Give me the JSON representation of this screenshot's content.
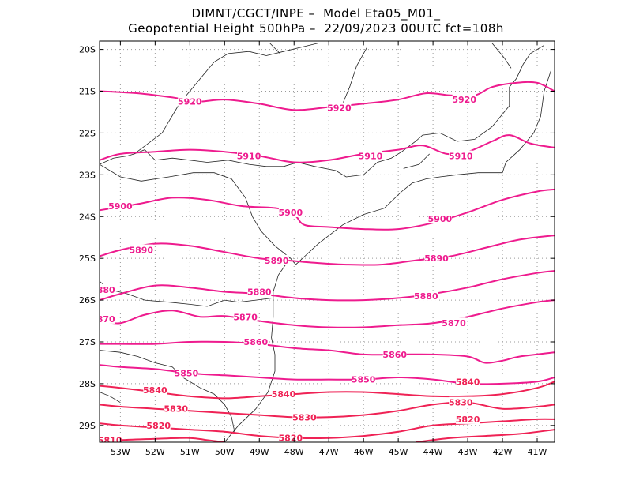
{
  "header": {
    "line1": "DIMNT/CGCT/INPE –  Model Eta05_M01_",
    "line2": "Geopotential Height 500hPa –  22/09/2023 00UTC fct=108h"
  },
  "map": {
    "lon_range": [
      -53.6,
      -40.5
    ],
    "lat_range": [
      -29.4,
      -19.8
    ],
    "lon_ticks": [
      "53W",
      "52W",
      "51W",
      "50W",
      "49W",
      "48W",
      "47W",
      "46W",
      "45W",
      "44W",
      "43W",
      "42W",
      "41W"
    ],
    "lat_ticks": [
      "20S",
      "21S",
      "22S",
      "23S",
      "24S",
      "25S",
      "26S",
      "27S",
      "28S",
      "29S"
    ],
    "grid": true
  },
  "contours": [
    {
      "value": "5920",
      "color": "#ee1b8e",
      "labels": [
        [
          -51.0,
          -21.25
        ],
        [
          -46.7,
          -21.4
        ],
        [
          -43.1,
          -21.2
        ]
      ],
      "points": [
        [
          -53.6,
          -21.0
        ],
        [
          -52.5,
          -21.05
        ],
        [
          -51.5,
          -21.15
        ],
        [
          -50.8,
          -21.25
        ],
        [
          -50.0,
          -21.2
        ],
        [
          -49.0,
          -21.3
        ],
        [
          -48.0,
          -21.45
        ],
        [
          -47.0,
          -21.38
        ],
        [
          -46.0,
          -21.3
        ],
        [
          -45.0,
          -21.2
        ],
        [
          -44.2,
          -21.05
        ],
        [
          -43.5,
          -21.1
        ],
        [
          -42.8,
          -21.1
        ],
        [
          -42.3,
          -20.9
        ],
        [
          -41.6,
          -20.8
        ],
        [
          -41.0,
          -20.8
        ],
        [
          -40.5,
          -21.0
        ]
      ]
    },
    {
      "value": "5910",
      "color": "#ee1b8e",
      "labels": [
        [
          -49.3,
          -22.55
        ],
        [
          -45.8,
          -22.55
        ],
        [
          -43.2,
          -22.55
        ]
      ],
      "points": [
        [
          -53.6,
          -22.65
        ],
        [
          -53.0,
          -22.5
        ],
        [
          -52.0,
          -22.45
        ],
        [
          -51.0,
          -22.4
        ],
        [
          -50.0,
          -22.45
        ],
        [
          -49.0,
          -22.55
        ],
        [
          -48.0,
          -22.7
        ],
        [
          -47.0,
          -22.65
        ],
        [
          -46.0,
          -22.5
        ],
        [
          -45.0,
          -22.4
        ],
        [
          -44.3,
          -22.3
        ],
        [
          -43.6,
          -22.5
        ],
        [
          -43.0,
          -22.45
        ],
        [
          -42.3,
          -22.2
        ],
        [
          -41.8,
          -22.05
        ],
        [
          -41.2,
          -22.25
        ],
        [
          -40.5,
          -22.35
        ]
      ]
    },
    {
      "value": "5900",
      "color": "#ee1b8e",
      "labels": [
        [
          -53.0,
          -23.75
        ],
        [
          -48.1,
          -23.9
        ],
        [
          -43.8,
          -24.05
        ]
      ],
      "points": [
        [
          -53.6,
          -23.85
        ],
        [
          -52.5,
          -23.7
        ],
        [
          -51.5,
          -23.55
        ],
        [
          -50.5,
          -23.6
        ],
        [
          -49.5,
          -23.75
        ],
        [
          -48.5,
          -23.8
        ],
        [
          -48.0,
          -23.95
        ],
        [
          -47.7,
          -24.2
        ],
        [
          -47.0,
          -24.25
        ],
        [
          -46.0,
          -24.3
        ],
        [
          -45.0,
          -24.3
        ],
        [
          -44.0,
          -24.15
        ],
        [
          -43.0,
          -23.9
        ],
        [
          -42.0,
          -23.6
        ],
        [
          -41.0,
          -23.4
        ],
        [
          -40.5,
          -23.35
        ]
      ]
    },
    {
      "value": "5890",
      "color": "#ee1b8e",
      "labels": [
        [
          -52.4,
          -24.8
        ],
        [
          -48.5,
          -25.05
        ],
        [
          -43.9,
          -25.0
        ]
      ],
      "points": [
        [
          -53.6,
          -24.95
        ],
        [
          -53.0,
          -24.8
        ],
        [
          -52.0,
          -24.65
        ],
        [
          -51.0,
          -24.7
        ],
        [
          -50.0,
          -24.85
        ],
        [
          -49.0,
          -25.0
        ],
        [
          -48.2,
          -25.05
        ],
        [
          -47.5,
          -25.1
        ],
        [
          -46.5,
          -25.15
        ],
        [
          -45.5,
          -25.15
        ],
        [
          -44.5,
          -25.05
        ],
        [
          -43.5,
          -24.95
        ],
        [
          -42.5,
          -24.75
        ],
        [
          -41.5,
          -24.55
        ],
        [
          -40.5,
          -24.45
        ]
      ]
    },
    {
      "value": "5880",
      "color": "#ee1b8e",
      "labels": [
        [
          -53.5,
          -25.75
        ],
        [
          -49.0,
          -25.8
        ],
        [
          -44.2,
          -25.9
        ]
      ],
      "points": [
        [
          -53.6,
          -26.0
        ],
        [
          -53.0,
          -25.85
        ],
        [
          -52.0,
          -25.65
        ],
        [
          -51.0,
          -25.7
        ],
        [
          -50.0,
          -25.8
        ],
        [
          -49.0,
          -25.85
        ],
        [
          -48.0,
          -25.95
        ],
        [
          -47.0,
          -26.0
        ],
        [
          -46.0,
          -26.0
        ],
        [
          -45.0,
          -25.95
        ],
        [
          -44.0,
          -25.85
        ],
        [
          -43.0,
          -25.7
        ],
        [
          -42.0,
          -25.5
        ],
        [
          -41.0,
          -25.35
        ],
        [
          -40.5,
          -25.3
        ]
      ]
    },
    {
      "value": "5870",
      "color": "#ee1b8e",
      "labels": [
        [
          -53.5,
          -26.45
        ],
        [
          -49.4,
          -26.4
        ],
        [
          -43.4,
          -26.55
        ]
      ],
      "points": [
        [
          -53.6,
          -26.5
        ],
        [
          -53.0,
          -26.55
        ],
        [
          -52.3,
          -26.35
        ],
        [
          -51.5,
          -26.25
        ],
        [
          -50.7,
          -26.4
        ],
        [
          -50.0,
          -26.38
        ],
        [
          -49.0,
          -26.5
        ],
        [
          -48.0,
          -26.6
        ],
        [
          -47.0,
          -26.65
        ],
        [
          -46.0,
          -26.65
        ],
        [
          -45.0,
          -26.6
        ],
        [
          -44.0,
          -26.55
        ],
        [
          -43.0,
          -26.4
        ],
        [
          -42.0,
          -26.2
        ],
        [
          -41.0,
          -26.05
        ],
        [
          -40.5,
          -26.0
        ]
      ]
    },
    {
      "value": "5860",
      "color": "#ee1b8e",
      "labels": [
        [
          -49.1,
          -27.0
        ],
        [
          -45.1,
          -27.3
        ]
      ],
      "points": [
        [
          -53.6,
          -27.05
        ],
        [
          -53.0,
          -27.05
        ],
        [
          -52.0,
          -27.05
        ],
        [
          -51.0,
          -27.0
        ],
        [
          -50.0,
          -27.0
        ],
        [
          -49.0,
          -27.05
        ],
        [
          -48.0,
          -27.15
        ],
        [
          -47.0,
          -27.2
        ],
        [
          -46.0,
          -27.3
        ],
        [
          -45.0,
          -27.3
        ],
        [
          -44.0,
          -27.3
        ],
        [
          -43.0,
          -27.35
        ],
        [
          -42.5,
          -27.5
        ],
        [
          -42.0,
          -27.45
        ],
        [
          -41.5,
          -27.35
        ],
        [
          -40.5,
          -27.25
        ]
      ]
    },
    {
      "value": "5850",
      "color": "#ee1b8e",
      "labels": [
        [
          -51.1,
          -27.75
        ],
        [
          -46.0,
          -27.9
        ]
      ],
      "points": [
        [
          -53.6,
          -27.55
        ],
        [
          -53.0,
          -27.6
        ],
        [
          -52.0,
          -27.65
        ],
        [
          -51.0,
          -27.75
        ],
        [
          -50.0,
          -27.8
        ],
        [
          -49.0,
          -27.85
        ],
        [
          -48.0,
          -27.9
        ],
        [
          -47.0,
          -27.9
        ],
        [
          -46.0,
          -27.9
        ],
        [
          -45.0,
          -27.85
        ],
        [
          -44.0,
          -27.9
        ],
        [
          -43.0,
          -28.0
        ],
        [
          -42.0,
          -28.0
        ],
        [
          -41.0,
          -27.95
        ],
        [
          -40.5,
          -27.85
        ]
      ]
    },
    {
      "value": "5840",
      "color": "#ef2255",
      "labels": [
        [
          -52.0,
          -28.15
        ],
        [
          -48.3,
          -28.25
        ],
        [
          -43.0,
          -27.95
        ]
      ],
      "points": [
        [
          -53.6,
          -28.05
        ],
        [
          -53.0,
          -28.1
        ],
        [
          -52.0,
          -28.2
        ],
        [
          -51.0,
          -28.3
        ],
        [
          -50.0,
          -28.35
        ],
        [
          -49.0,
          -28.3
        ],
        [
          -48.0,
          -28.25
        ],
        [
          -47.0,
          -28.2
        ],
        [
          -46.0,
          -28.2
        ],
        [
          -45.0,
          -28.25
        ],
        [
          -44.0,
          -28.3
        ],
        [
          -43.0,
          -28.3
        ],
        [
          -42.0,
          -28.25
        ],
        [
          -41.0,
          -28.1
        ],
        [
          -40.5,
          -27.95
        ]
      ]
    },
    {
      "value": "5830",
      "color": "#ef2255",
      "labels": [
        [
          -51.4,
          -28.6
        ],
        [
          -47.7,
          -28.8
        ],
        [
          -43.2,
          -28.45
        ]
      ],
      "points": [
        [
          -53.6,
          -28.5
        ],
        [
          -53.0,
          -28.55
        ],
        [
          -52.0,
          -28.6
        ],
        [
          -51.0,
          -28.65
        ],
        [
          -50.0,
          -28.7
        ],
        [
          -49.0,
          -28.75
        ],
        [
          -48.0,
          -28.8
        ],
        [
          -47.0,
          -28.8
        ],
        [
          -46.0,
          -28.75
        ],
        [
          -45.0,
          -28.65
        ],
        [
          -44.0,
          -28.5
        ],
        [
          -43.0,
          -28.45
        ],
        [
          -42.0,
          -28.6
        ],
        [
          -41.0,
          -28.55
        ],
        [
          -40.5,
          -28.5
        ]
      ]
    },
    {
      "value": "5820",
      "color": "#ef2255",
      "labels": [
        [
          -51.9,
          -29.0
        ],
        [
          -48.1,
          -29.3
        ],
        [
          -43.0,
          -28.85
        ]
      ],
      "points": [
        [
          -53.6,
          -28.95
        ],
        [
          -53.0,
          -29.0
        ],
        [
          -52.0,
          -29.05
        ],
        [
          -51.0,
          -29.1
        ],
        [
          -50.0,
          -29.15
        ],
        [
          -49.0,
          -29.25
        ],
        [
          -48.0,
          -29.3
        ],
        [
          -47.0,
          -29.3
        ],
        [
          -46.0,
          -29.25
        ],
        [
          -45.0,
          -29.15
        ],
        [
          -44.0,
          -29.0
        ],
        [
          -43.0,
          -28.95
        ],
        [
          -42.0,
          -28.9
        ],
        [
          -41.0,
          -28.85
        ],
        [
          -40.5,
          -28.85
        ]
      ]
    },
    {
      "value": "5810",
      "color": "#ef2255",
      "labels": [
        [
          -53.3,
          -29.35
        ]
      ],
      "points": [
        [
          -53.6,
          -29.4
        ],
        [
          -53.0,
          -29.35
        ],
        [
          -52.0,
          -29.32
        ],
        [
          -51.0,
          -29.3
        ],
        [
          -50.5,
          -29.35
        ],
        [
          -50.0,
          -29.4
        ]
      ]
    },
    {
      "value": "5810",
      "color": "#ef2255",
      "labels": [],
      "points": [
        [
          -44.5,
          -29.4
        ],
        [
          -43.5,
          -29.3
        ],
        [
          -42.5,
          -29.25
        ],
        [
          -41.5,
          -29.2
        ],
        [
          -40.5,
          -29.1
        ]
      ]
    }
  ],
  "borders": [
    [
      [
        -52.6,
        -22.5
      ],
      [
        -52.3,
        -22.4
      ],
      [
        -52.0,
        -22.65
      ],
      [
        -51.5,
        -22.6
      ],
      [
        -51.0,
        -22.65
      ],
      [
        -50.5,
        -22.7
      ],
      [
        -49.9,
        -22.65
      ],
      [
        -49.3,
        -22.75
      ],
      [
        -48.8,
        -22.8
      ],
      [
        -48.3,
        -22.8
      ],
      [
        -47.9,
        -22.7
      ],
      [
        -47.4,
        -22.8
      ],
      [
        -46.8,
        -22.9
      ],
      [
        -46.5,
        -23.05
      ],
      [
        -46.0,
        -23.0
      ],
      [
        -45.6,
        -22.7
      ],
      [
        -45.2,
        -22.6
      ],
      [
        -44.9,
        -22.45
      ],
      [
        -44.5,
        -22.2
      ],
      [
        -44.3,
        -22.05
      ],
      [
        -43.8,
        -22.0
      ],
      [
        -43.3,
        -22.2
      ],
      [
        -42.8,
        -22.15
      ],
      [
        -42.3,
        -21.85
      ],
      [
        -41.8,
        -21.35
      ],
      [
        -41.8,
        -20.9
      ],
      [
        -41.6,
        -20.7
      ],
      [
        -41.4,
        -20.35
      ],
      [
        -41.2,
        -20.1
      ],
      [
        -40.8,
        -19.9
      ]
    ],
    [
      [
        -53.6,
        -22.75
      ],
      [
        -53.2,
        -22.6
      ],
      [
        -52.8,
        -22.55
      ],
      [
        -52.6,
        -22.5
      ]
    ],
    [
      [
        -52.6,
        -22.5
      ],
      [
        -51.8,
        -22.0
      ],
      [
        -51.3,
        -21.3
      ],
      [
        -50.9,
        -20.9
      ],
      [
        -50.6,
        -20.6
      ],
      [
        -50.3,
        -20.3
      ],
      [
        -49.9,
        -20.1
      ],
      [
        -49.3,
        -20.05
      ],
      [
        -48.8,
        -20.15
      ],
      [
        -48.3,
        -20.05
      ],
      [
        -47.8,
        -19.95
      ],
      [
        -47.3,
        -19.85
      ]
    ],
    [
      [
        -53.6,
        -22.75
      ],
      [
        -53.0,
        -23.05
      ],
      [
        -52.4,
        -23.15
      ],
      [
        -51.6,
        -23.05
      ],
      [
        -50.9,
        -22.95
      ],
      [
        -50.3,
        -22.95
      ],
      [
        -49.8,
        -23.1
      ],
      [
        -49.4,
        -23.55
      ],
      [
        -49.2,
        -24.0
      ],
      [
        -48.95,
        -24.35
      ],
      [
        -48.55,
        -24.7
      ],
      [
        -48.1,
        -25.0
      ],
      [
        -47.95,
        -25.15
      ]
    ],
    [
      [
        -53.6,
        -25.55
      ],
      [
        -53.3,
        -25.75
      ],
      [
        -52.8,
        -25.85
      ],
      [
        -52.3,
        -26.0
      ],
      [
        -51.6,
        -26.05
      ],
      [
        -51.0,
        -26.1
      ],
      [
        -50.5,
        -26.15
      ],
      [
        -50.0,
        -26.0
      ],
      [
        -49.6,
        -26.05
      ],
      [
        -49.1,
        -26.0
      ],
      [
        -48.6,
        -25.95
      ]
    ],
    [
      [
        -53.6,
        -27.2
      ],
      [
        -53.0,
        -27.25
      ],
      [
        -52.5,
        -27.35
      ],
      [
        -52.0,
        -27.5
      ],
      [
        -51.5,
        -27.6
      ],
      [
        -51.2,
        -27.85
      ],
      [
        -50.7,
        -28.1
      ],
      [
        -50.3,
        -28.25
      ],
      [
        -50.0,
        -28.5
      ],
      [
        -49.8,
        -28.8
      ],
      [
        -49.7,
        -29.2
      ]
    ],
    [
      [
        -53.6,
        -28.2
      ],
      [
        -53.3,
        -28.3
      ],
      [
        -53.0,
        -28.45
      ]
    ],
    [
      [
        -48.2,
        -25.1
      ],
      [
        -48.45,
        -25.4
      ],
      [
        -48.6,
        -25.8
      ],
      [
        -48.6,
        -26.4
      ],
      [
        -48.65,
        -26.9
      ],
      [
        -48.55,
        -27.3
      ],
      [
        -48.55,
        -27.7
      ],
      [
        -48.75,
        -28.2
      ],
      [
        -49.1,
        -28.6
      ],
      [
        -49.6,
        -29.0
      ],
      [
        -50.0,
        -29.4
      ]
    ],
    [
      [
        -47.95,
        -25.15
      ],
      [
        -47.3,
        -24.65
      ],
      [
        -46.6,
        -24.2
      ],
      [
        -46.0,
        -23.95
      ],
      [
        -45.4,
        -23.8
      ],
      [
        -44.9,
        -23.4
      ],
      [
        -44.6,
        -23.2
      ],
      [
        -44.2,
        -23.1
      ],
      [
        -43.8,
        -23.05
      ],
      [
        -43.3,
        -23.0
      ],
      [
        -42.7,
        -22.95
      ],
      [
        -42.0,
        -22.95
      ],
      [
        -41.9,
        -22.7
      ],
      [
        -41.5,
        -22.4
      ],
      [
        -41.1,
        -22.0
      ],
      [
        -40.9,
        -21.6
      ],
      [
        -40.8,
        -21.0
      ],
      [
        -40.6,
        -20.5
      ]
    ],
    [
      [
        -42.3,
        -19.85
      ],
      [
        -41.95,
        -20.2
      ],
      [
        -41.75,
        -20.45
      ]
    ],
    [
      [
        -45.9,
        -19.95
      ],
      [
        -46.2,
        -20.4
      ],
      [
        -46.4,
        -20.9
      ],
      [
        -46.6,
        -21.3
      ]
    ],
    [
      [
        -48.7,
        -19.85
      ],
      [
        -48.4,
        -20.1
      ]
    ],
    [
      [
        -44.1,
        -22.5
      ],
      [
        -44.4,
        -22.75
      ],
      [
        -44.85,
        -22.85
      ]
    ]
  ]
}
